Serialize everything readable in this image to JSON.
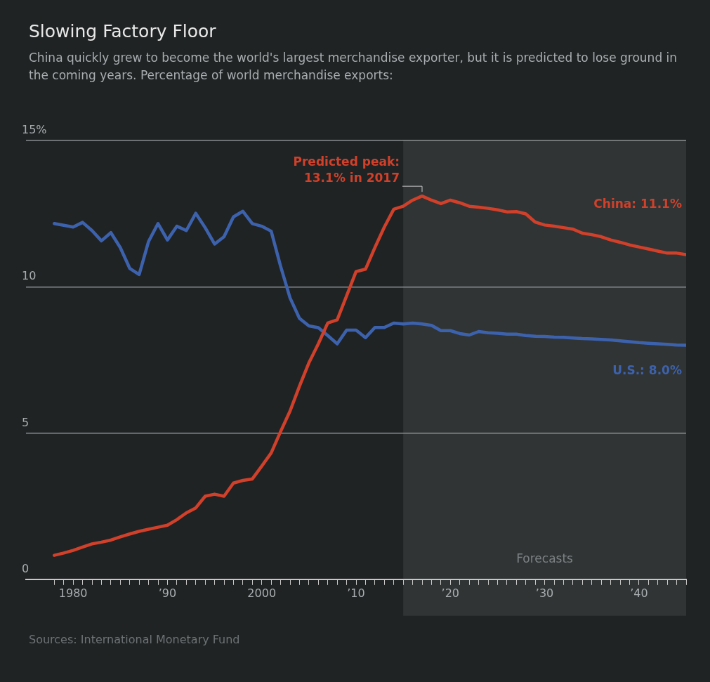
{
  "chart_data": {
    "type": "line",
    "title": "Slowing Factory Floor",
    "subtitle": "China quickly grew to become the world's largest merchandise exporter, but it is predicted to lose ground in the coming years. Percentage of world merchandise exports:",
    "x": [
      1978,
      1979,
      1980,
      1981,
      1982,
      1983,
      1984,
      1985,
      1986,
      1987,
      1988,
      1989,
      1990,
      1991,
      1992,
      1993,
      1994,
      1995,
      1996,
      1997,
      1998,
      1999,
      2000,
      2001,
      2002,
      2003,
      2004,
      2005,
      2006,
      2007,
      2008,
      2009,
      2010,
      2011,
      2012,
      2013,
      2014,
      2015,
      2016,
      2017,
      2018,
      2019,
      2020,
      2021,
      2022,
      2023,
      2024,
      2025,
      2026,
      2027,
      2028,
      2029,
      2030,
      2031,
      2032,
      2033,
      2034,
      2035,
      2036,
      2037,
      2038,
      2039,
      2040,
      2041,
      2042,
      2043,
      2044,
      2045
    ],
    "series": [
      {
        "name": "China: 11.1%",
        "color": "#d0402a",
        "values": [
          0.82,
          0.9,
          0.99,
          1.1,
          1.21,
          1.27,
          1.34,
          1.45,
          1.55,
          1.64,
          1.71,
          1.78,
          1.85,
          2.04,
          2.27,
          2.44,
          2.84,
          2.91,
          2.84,
          3.29,
          3.38,
          3.43,
          3.87,
          4.32,
          5.05,
          5.75,
          6.6,
          7.4,
          8.05,
          8.76,
          8.87,
          9.69,
          10.52,
          10.6,
          11.34,
          12.04,
          12.65,
          12.75,
          12.96,
          13.1,
          12.96,
          12.84,
          12.96,
          12.87,
          12.75,
          12.72,
          12.68,
          12.63,
          12.56,
          12.57,
          12.49,
          12.21,
          12.11,
          12.07,
          12.02,
          11.97,
          11.83,
          11.78,
          11.71,
          11.6,
          11.52,
          11.43,
          11.36,
          11.29,
          11.22,
          11.15,
          11.15,
          11.1
        ]
      },
      {
        "name": "U.S.: 8.0%",
        "color": "#3d62ad",
        "values": [
          12.16,
          12.1,
          12.04,
          12.2,
          11.92,
          11.57,
          11.85,
          11.34,
          10.63,
          10.42,
          11.55,
          12.16,
          11.6,
          12.07,
          11.92,
          12.51,
          12.02,
          11.46,
          11.71,
          12.39,
          12.58,
          12.16,
          12.07,
          11.9,
          10.7,
          9.62,
          8.92,
          8.66,
          8.6,
          8.33,
          8.05,
          8.52,
          8.52,
          8.26,
          8.61,
          8.61,
          8.76,
          8.73,
          8.76,
          8.73,
          8.68,
          8.5,
          8.5,
          8.4,
          8.35,
          8.47,
          8.43,
          8.41,
          8.38,
          8.38,
          8.33,
          8.31,
          8.3,
          8.28,
          8.27,
          8.25,
          8.23,
          8.22,
          8.2,
          8.18,
          8.15,
          8.12,
          8.09,
          8.07,
          8.05,
          8.03,
          8.01,
          8.0
        ]
      }
    ],
    "xlim": [
      1975,
      2045
    ],
    "xticks": [
      {
        "value": 1978,
        "label": null
      },
      {
        "value": 1979,
        "label": null
      },
      {
        "value": 1980,
        "label": "1980"
      },
      {
        "value": 1981,
        "label": null
      },
      {
        "value": 1982,
        "label": null
      },
      {
        "value": 1983,
        "label": null
      },
      {
        "value": 1984,
        "label": null
      },
      {
        "value": 1985,
        "label": null
      },
      {
        "value": 1986,
        "label": null
      },
      {
        "value": 1987,
        "label": null
      },
      {
        "value": 1988,
        "label": null
      },
      {
        "value": 1989,
        "label": null
      },
      {
        "value": 1990,
        "label": "’90"
      },
      {
        "value": 1991,
        "label": null
      },
      {
        "value": 1992,
        "label": null
      },
      {
        "value": 1993,
        "label": null
      },
      {
        "value": 1994,
        "label": null
      },
      {
        "value": 1995,
        "label": null
      },
      {
        "value": 1996,
        "label": null
      },
      {
        "value": 1997,
        "label": null
      },
      {
        "value": 1998,
        "label": null
      },
      {
        "value": 1999,
        "label": null
      },
      {
        "value": 2000,
        "label": "2000"
      },
      {
        "value": 2001,
        "label": null
      },
      {
        "value": 2002,
        "label": null
      },
      {
        "value": 2003,
        "label": null
      },
      {
        "value": 2004,
        "label": null
      },
      {
        "value": 2005,
        "label": null
      },
      {
        "value": 2006,
        "label": null
      },
      {
        "value": 2007,
        "label": null
      },
      {
        "value": 2008,
        "label": null
      },
      {
        "value": 2009,
        "label": null
      },
      {
        "value": 2010,
        "label": "’10"
      },
      {
        "value": 2011,
        "label": null
      },
      {
        "value": 2012,
        "label": null
      },
      {
        "value": 2013,
        "label": null
      },
      {
        "value": 2014,
        "label": null
      },
      {
        "value": 2015,
        "label": null
      },
      {
        "value": 2016,
        "label": null
      },
      {
        "value": 2017,
        "label": null
      },
      {
        "value": 2018,
        "label": null
      },
      {
        "value": 2019,
        "label": null
      },
      {
        "value": 2020,
        "label": "’20"
      },
      {
        "value": 2021,
        "label": null
      },
      {
        "value": 2022,
        "label": null
      },
      {
        "value": 2023,
        "label": null
      },
      {
        "value": 2024,
        "label": null
      },
      {
        "value": 2025,
        "label": null
      },
      {
        "value": 2026,
        "label": null
      },
      {
        "value": 2027,
        "label": null
      },
      {
        "value": 2028,
        "label": null
      },
      {
        "value": 2029,
        "label": null
      },
      {
        "value": 2030,
        "label": "’30"
      },
      {
        "value": 2031,
        "label": null
      },
      {
        "value": 2032,
        "label": null
      },
      {
        "value": 2033,
        "label": null
      },
      {
        "value": 2034,
        "label": null
      },
      {
        "value": 2035,
        "label": null
      },
      {
        "value": 2036,
        "label": null
      },
      {
        "value": 2037,
        "label": null
      },
      {
        "value": 2038,
        "label": null
      },
      {
        "value": 2039,
        "label": null
      },
      {
        "value": 2040,
        "label": "’40"
      },
      {
        "value": 2041,
        "label": null
      },
      {
        "value": 2042,
        "label": null
      },
      {
        "value": 2043,
        "label": null
      },
      {
        "value": 2044,
        "label": null
      },
      {
        "value": 2045,
        "label": null
      }
    ],
    "ylim": [
      0,
      15
    ],
    "yticks": [
      0,
      5,
      10,
      {
        "value": 15,
        "label": "15%"
      }
    ],
    "grid": "y",
    "legend": false,
    "marker": "none",
    "line_style": "solid",
    "bands": [
      {
        "axis": "x",
        "from": 2015,
        "to": 2045,
        "label": "Forecasts",
        "color": "#303435"
      }
    ],
    "annotations": [
      {
        "text": "Predicted peak:\n13.1% in 2017",
        "x": 2017,
        "y": 13.1
      },
      "Sources: International Monetary Fund"
    ]
  }
}
